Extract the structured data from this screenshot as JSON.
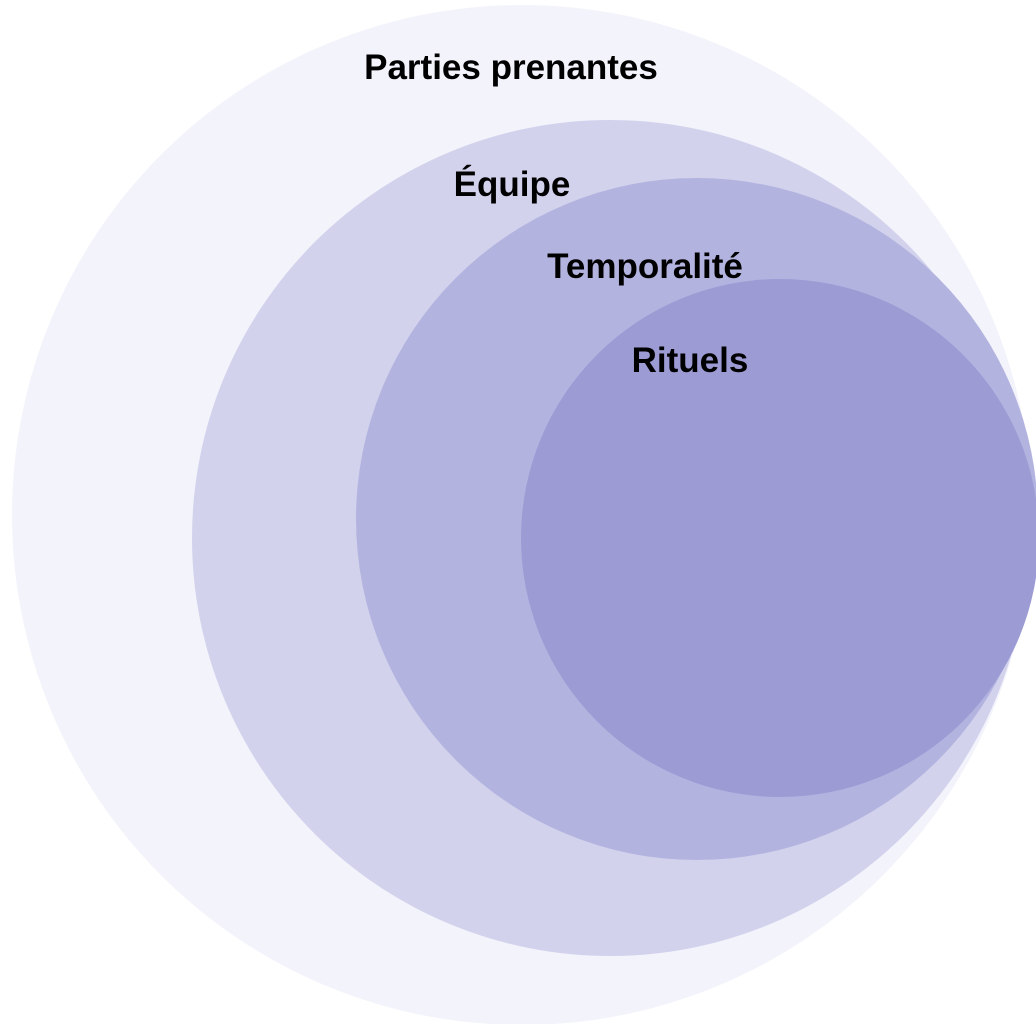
{
  "diagram": {
    "layers": [
      {
        "label": "Parties prenantes",
        "color": "#f3f3fb"
      },
      {
        "label": "Équipe",
        "color": "#d2d2ed"
      },
      {
        "label": "Temporalité",
        "color": "#b3b3e0"
      },
      {
        "label": "Rituels",
        "color": "#9c9bd4"
      }
    ]
  }
}
